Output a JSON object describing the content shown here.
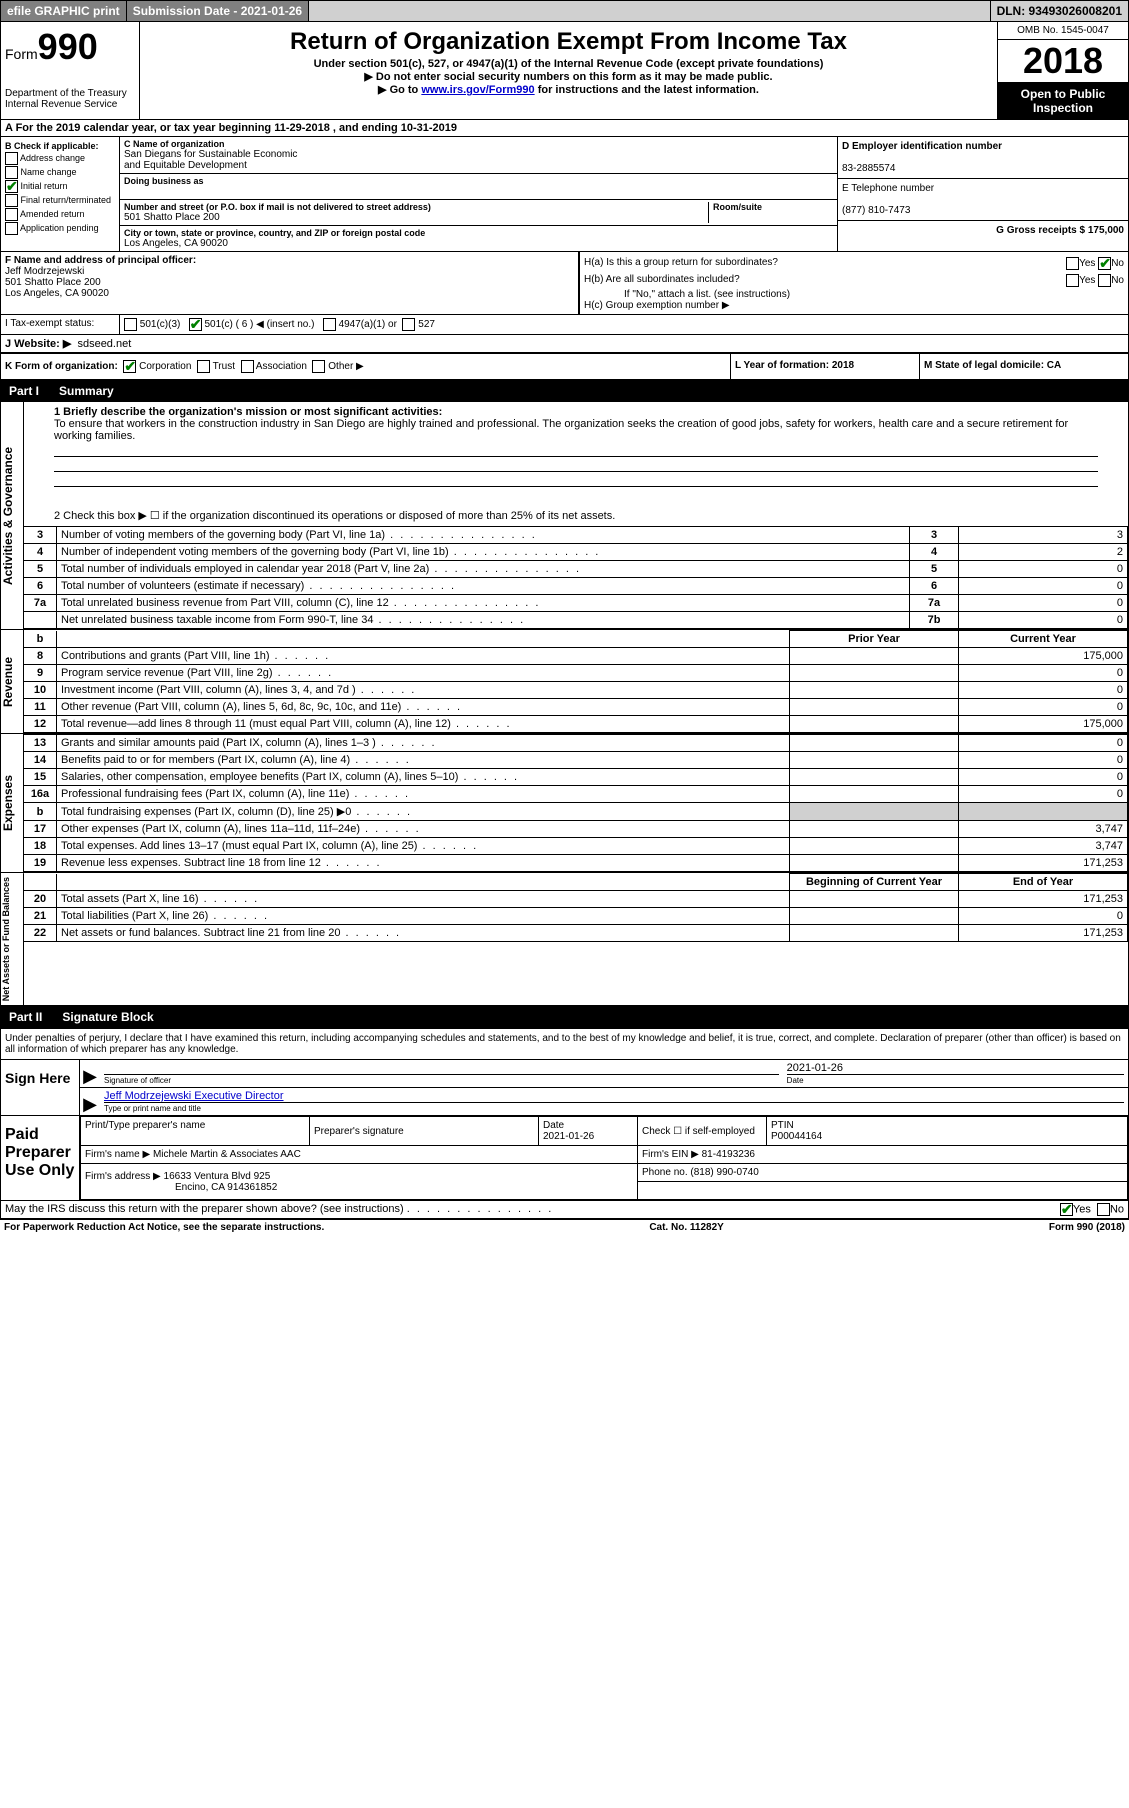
{
  "topbar": {
    "efile": "efile GRAPHIC print",
    "submission": "Submission Date - 2021-01-26",
    "dln": "DLN: 93493026008201"
  },
  "header": {
    "form_small": "Form",
    "form_big": "990",
    "title": "Return of Organization Exempt From Income Tax",
    "subtitle": "Under section 501(c), 527, or 4947(a)(1) of the Internal Revenue Code (except private foundations)",
    "note1": "▶ Do not enter social security numbers on this form as it may be made public.",
    "note2_pre": "▶ Go to ",
    "note2_link": "www.irs.gov/Form990",
    "note2_post": " for instructions and the latest information.",
    "dept1": "Department of the Treasury",
    "dept2": "Internal Revenue Service",
    "omb": "OMB No. 1545-0047",
    "year": "2018",
    "open1": "Open to Public",
    "open2": "Inspection"
  },
  "line_a": "A For the 2019 calendar year, or tax year beginning 11-29-2018   , and ending 10-31-2019",
  "col_b": {
    "hdr": "B Check if applicable:",
    "addr": "Address change",
    "name": "Name change",
    "init": "Initial return",
    "final": "Final return/terminated",
    "amend": "Amended return",
    "app": "Application pending"
  },
  "col_c": {
    "c_lbl": "C Name of organization",
    "org1": "San Diegans for Sustainable Economic",
    "org2": "and Equitable Development",
    "dba_lbl": "Doing business as",
    "addr_lbl": "Number and street (or P.O. box if mail is not delivered to street address)",
    "room_lbl": "Room/suite",
    "addr": "501 Shatto Place 200",
    "city_lbl": "City or town, state or province, country, and ZIP or foreign postal code",
    "city": "Los Angeles, CA  90020"
  },
  "col_d": {
    "d_lbl": "D Employer identification number",
    "ein": "83-2885574",
    "e_lbl": "E Telephone number",
    "phone": "(877) 810-7473",
    "g_lbl": "G Gross receipts $ 175,000"
  },
  "row_f": {
    "f_lbl": "F  Name and address of principal officer:",
    "name": "Jeff Modrzejewski",
    "addr1": "501 Shatto Place 200",
    "addr2": "Los Angeles, CA  90020",
    "ha": "H(a)  Is this a group return for subordinates?",
    "hb": "H(b)  Are all subordinates included?",
    "hb_note": "If \"No,\" attach a list. (see instructions)",
    "hc": "H(c)  Group exemption number ▶"
  },
  "row_i": {
    "tax_lbl": "Tax-exempt status:",
    "c3": "501(c)(3)",
    "c": "501(c) ( 6 ) ◀ (insert no.)",
    "a1": "4947(a)(1) or",
    "s527": "527"
  },
  "row_j": {
    "lbl": "J   Website: ▶",
    "site": "sdseed.net"
  },
  "row_k": {
    "lbl": "K Form of organization:",
    "corp": "Corporation",
    "trust": "Trust",
    "assoc": "Association",
    "other": "Other ▶",
    "l_lbl": "L Year of formation: 2018",
    "m_lbl": "M State of legal domicile: CA"
  },
  "part1": {
    "num": "Part I",
    "title": "Summary"
  },
  "section_labels": {
    "ag": "Activities & Governance",
    "rev": "Revenue",
    "exp": "Expenses",
    "net": "Net Assets or Fund Balances"
  },
  "mission": {
    "l1": "1   Briefly describe the organization's mission or most significant activities:",
    "text": "To ensure that workers in the construction industry in San Diego are highly trained and professional. The organization seeks the creation of good jobs, safety for workers, health care and a secure retirement for working families."
  },
  "line2": "2   Check this box ▶ ☐  if the organization discontinued its operations or disposed of more than 25% of its net assets.",
  "rows_ag": [
    {
      "n": "3",
      "d": "Number of voting members of the governing body (Part VI, line 1a)",
      "b": "3",
      "v": "3"
    },
    {
      "n": "4",
      "d": "Number of independent voting members of the governing body (Part VI, line 1b)",
      "b": "4",
      "v": "2"
    },
    {
      "n": "5",
      "d": "Total number of individuals employed in calendar year 2018 (Part V, line 2a)",
      "b": "5",
      "v": "0"
    },
    {
      "n": "6",
      "d": "Total number of volunteers (estimate if necessary)",
      "b": "6",
      "v": "0"
    },
    {
      "n": "7a",
      "d": "Total unrelated business revenue from Part VIII, column (C), line 12",
      "b": "7a",
      "v": "0"
    },
    {
      "n": "",
      "d": "Net unrelated business taxable income from Form 990-T, line 34",
      "b": "7b",
      "v": "0"
    }
  ],
  "col_hdr": {
    "b": "b",
    "py": "Prior Year",
    "cy": "Current Year"
  },
  "rows_rev": [
    {
      "n": "8",
      "d": "Contributions and grants (Part VIII, line 1h)",
      "py": "",
      "cy": "175,000"
    },
    {
      "n": "9",
      "d": "Program service revenue (Part VIII, line 2g)",
      "py": "",
      "cy": "0"
    },
    {
      "n": "10",
      "d": "Investment income (Part VIII, column (A), lines 3, 4, and 7d )",
      "py": "",
      "cy": "0"
    },
    {
      "n": "11",
      "d": "Other revenue (Part VIII, column (A), lines 5, 6d, 8c, 9c, 10c, and 11e)",
      "py": "",
      "cy": "0"
    },
    {
      "n": "12",
      "d": "Total revenue—add lines 8 through 11 (must equal Part VIII, column (A), line 12)",
      "py": "",
      "cy": "175,000"
    }
  ],
  "rows_exp": [
    {
      "n": "13",
      "d": "Grants and similar amounts paid (Part IX, column (A), lines 1–3 )",
      "py": "",
      "cy": "0"
    },
    {
      "n": "14",
      "d": "Benefits paid to or for members (Part IX, column (A), line 4)",
      "py": "",
      "cy": "0"
    },
    {
      "n": "15",
      "d": "Salaries, other compensation, employee benefits (Part IX, column (A), lines 5–10)",
      "py": "",
      "cy": "0"
    },
    {
      "n": "16a",
      "d": "Professional fundraising fees (Part IX, column (A), line 11e)",
      "py": "",
      "cy": "0"
    },
    {
      "n": "b",
      "d": "Total fundraising expenses (Part IX, column (D), line 25) ▶0",
      "py": "shade",
      "cy": "shade"
    },
    {
      "n": "17",
      "d": "Other expenses (Part IX, column (A), lines 11a–11d, 11f–24e)",
      "py": "",
      "cy": "3,747"
    },
    {
      "n": "18",
      "d": "Total expenses. Add lines 13–17 (must equal Part IX, column (A), line 25)",
      "py": "",
      "cy": "3,747"
    },
    {
      "n": "19",
      "d": "Revenue less expenses. Subtract line 18 from line 12",
      "py": "",
      "cy": "171,253"
    }
  ],
  "col_hdr2": {
    "by": "Beginning of Current Year",
    "ey": "End of Year"
  },
  "rows_net": [
    {
      "n": "20",
      "d": "Total assets (Part X, line 16)",
      "py": "",
      "cy": "171,253"
    },
    {
      "n": "21",
      "d": "Total liabilities (Part X, line 26)",
      "py": "",
      "cy": "0"
    },
    {
      "n": "22",
      "d": "Net assets or fund balances. Subtract line 21 from line 20",
      "py": "",
      "cy": "171,253"
    }
  ],
  "part2": {
    "num": "Part II",
    "title": "Signature Block"
  },
  "penalty": "Under penalties of perjury, I declare that I have examined this return, including accompanying schedules and statements, and to the best of my knowledge and belief, it is true, correct, and complete. Declaration of preparer (other than officer) is based on all information of which preparer has any knowledge.",
  "sign": {
    "here": "Sign Here",
    "sig_lbl": "Signature of officer",
    "date": "2021-01-26",
    "date_lbl": "Date",
    "name": "Jeff Modrzejewski  Executive Director",
    "name_lbl": "Type or print name and title"
  },
  "prep": {
    "use": "Paid Preparer Use Only",
    "pname_lbl": "Print/Type preparer's name",
    "psig_lbl": "Preparer's signature",
    "pdate_lbl": "Date",
    "pdate": "2021-01-26",
    "check_lbl": "Check ☐ if self-employed",
    "ptin_lbl": "PTIN",
    "ptin": "P00044164",
    "firm_lbl": "Firm's name     ▶",
    "firm": "Michele Martin & Associates AAC",
    "fein_lbl": "Firm's EIN ▶",
    "fein": "81-4193236",
    "faddr_lbl": "Firm's address ▶",
    "faddr1": "16633 Ventura Blvd 925",
    "faddr2": "Encino, CA  914361852",
    "fphone_lbl": "Phone no.",
    "fphone": "(818) 990-0740"
  },
  "irs_q": "May the IRS discuss this return with the preparer shown above? (see instructions)",
  "foot": {
    "left": "For Paperwork Reduction Act Notice, see the separate instructions.",
    "mid": "Cat. No. 11282Y",
    "right": "Form 990 (2018)"
  }
}
